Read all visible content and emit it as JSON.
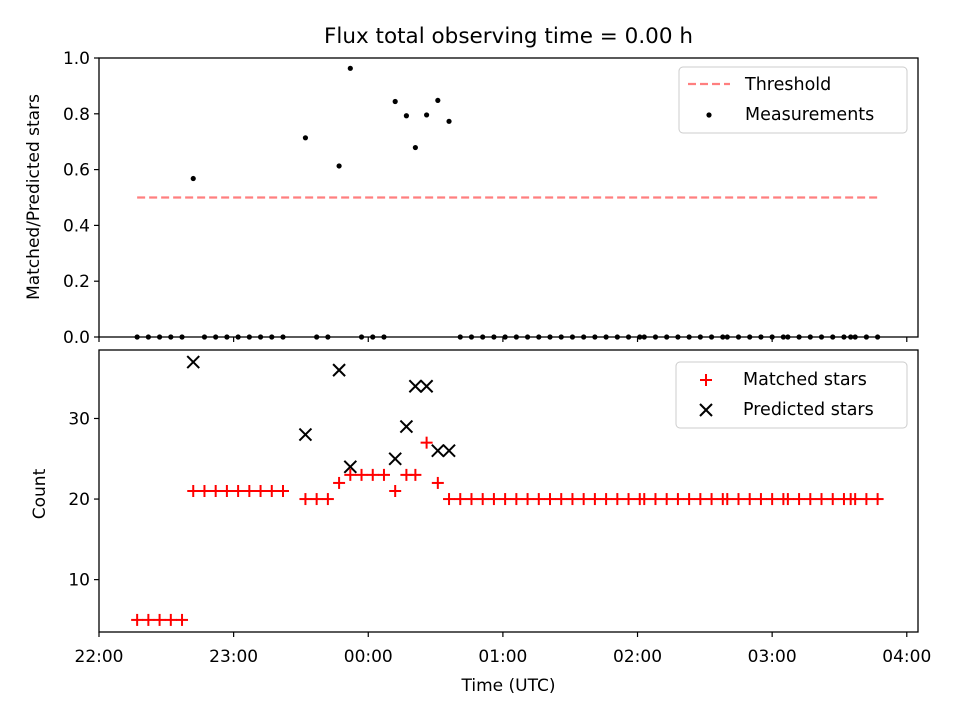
{
  "chart_data": [
    {
      "type": "scatter",
      "title": "Flux total observing time = 0.00 h",
      "xlabel": "",
      "ylabel": "Matched/Predicted stars",
      "ylim": [
        0,
        1.0
      ],
      "yticks": [
        "0.0",
        "0.2",
        "0.4",
        "0.6",
        "0.8",
        "1.0"
      ],
      "legend_position": "upper right",
      "threshold": {
        "name": "Threshold",
        "value": 0.5,
        "x_start": "22:17",
        "x_end": "03:47",
        "color": "#ff7f7f"
      },
      "series": [
        {
          "name": "Measurements",
          "color": "#000000",
          "marker": "dot",
          "points": [
            [
              "22:17",
              0
            ],
            [
              "22:22",
              0
            ],
            [
              "22:27",
              0
            ],
            [
              "22:32",
              0
            ],
            [
              "22:37",
              0
            ],
            [
              "22:42",
              0.568
            ],
            [
              "22:47",
              0
            ],
            [
              "22:52",
              0
            ],
            [
              "22:57",
              0
            ],
            [
              "23:02",
              0
            ],
            [
              "23:07",
              0
            ],
            [
              "23:12",
              0
            ],
            [
              "23:17",
              0
            ],
            [
              "23:22",
              0
            ],
            [
              "23:32",
              0.714
            ],
            [
              "23:37",
              0
            ],
            [
              "23:42",
              0
            ],
            [
              "23:47",
              0.613
            ],
            [
              "23:52",
              0.963
            ],
            [
              "23:57",
              0
            ],
            [
              "00:02",
              0
            ],
            [
              "00:07",
              0
            ],
            [
              "00:12",
              0.844
            ],
            [
              "00:17",
              0.793
            ],
            [
              "00:21",
              0.679
            ],
            [
              "00:26",
              0.796
            ],
            [
              "00:31",
              0.848
            ],
            [
              "00:36",
              0.773
            ],
            [
              "00:41",
              0
            ],
            [
              "00:46",
              0
            ],
            [
              "00:51",
              0
            ],
            [
              "00:56",
              0
            ],
            [
              "01:01",
              0
            ],
            [
              "01:06",
              0
            ],
            [
              "01:11",
              0
            ],
            [
              "01:16",
              0
            ],
            [
              "01:21",
              0
            ],
            [
              "01:26",
              0
            ],
            [
              "01:31",
              0
            ],
            [
              "01:36",
              0
            ],
            [
              "01:41",
              0
            ],
            [
              "01:46",
              0
            ],
            [
              "01:51",
              0
            ],
            [
              "01:56",
              0
            ],
            [
              "02:01",
              0
            ],
            [
              "02:03",
              0
            ],
            [
              "02:08",
              0
            ],
            [
              "02:13",
              0
            ],
            [
              "02:18",
              0
            ],
            [
              "02:23",
              0
            ],
            [
              "02:28",
              0
            ],
            [
              "02:33",
              0
            ],
            [
              "02:38",
              0
            ],
            [
              "02:40",
              0
            ],
            [
              "02:45",
              0
            ],
            [
              "02:50",
              0
            ],
            [
              "02:55",
              0
            ],
            [
              "03:00",
              0
            ],
            [
              "03:05",
              0
            ],
            [
              "03:07",
              0
            ],
            [
              "03:12",
              0
            ],
            [
              "03:17",
              0
            ],
            [
              "03:22",
              0
            ],
            [
              "03:27",
              0
            ],
            [
              "03:32",
              0
            ],
            [
              "03:35",
              0
            ],
            [
              "03:37",
              0
            ],
            [
              "03:42",
              0
            ],
            [
              "03:47",
              0
            ]
          ]
        }
      ]
    },
    {
      "type": "scatter",
      "title": "",
      "xlabel": "Time (UTC)",
      "ylabel": "Count",
      "ylim": [
        3.5,
        38.5
      ],
      "yticks": [
        "10",
        "20",
        "30"
      ],
      "xticks": [
        "22:00",
        "23:00",
        "00:00",
        "01:00",
        "02:00",
        "03:00",
        "04:00"
      ],
      "legend_position": "upper right",
      "series": [
        {
          "name": "Matched stars",
          "color": "#ff0000",
          "marker": "plus",
          "points": [
            [
              "22:17",
              5
            ],
            [
              "22:22",
              5
            ],
            [
              "22:27",
              5
            ],
            [
              "22:32",
              5
            ],
            [
              "22:37",
              5
            ],
            [
              "22:42",
              21
            ],
            [
              "22:47",
              21
            ],
            [
              "22:52",
              21
            ],
            [
              "22:57",
              21
            ],
            [
              "23:02",
              21
            ],
            [
              "23:07",
              21
            ],
            [
              "23:12",
              21
            ],
            [
              "23:17",
              21
            ],
            [
              "23:22",
              21
            ],
            [
              "23:32",
              20
            ],
            [
              "23:37",
              20
            ],
            [
              "23:42",
              20
            ],
            [
              "23:47",
              22
            ],
            [
              "23:52",
              23
            ],
            [
              "23:57",
              23
            ],
            [
              "00:02",
              23
            ],
            [
              "00:07",
              23
            ],
            [
              "00:12",
              21
            ],
            [
              "00:17",
              23
            ],
            [
              "00:21",
              23
            ],
            [
              "00:26",
              27
            ],
            [
              "00:31",
              22
            ],
            [
              "00:36",
              20
            ],
            [
              "00:41",
              20
            ],
            [
              "00:46",
              20
            ],
            [
              "00:51",
              20
            ],
            [
              "00:56",
              20
            ],
            [
              "01:01",
              20
            ],
            [
              "01:06",
              20
            ],
            [
              "01:11",
              20
            ],
            [
              "01:16",
              20
            ],
            [
              "01:21",
              20
            ],
            [
              "01:26",
              20
            ],
            [
              "01:31",
              20
            ],
            [
              "01:36",
              20
            ],
            [
              "01:41",
              20
            ],
            [
              "01:46",
              20
            ],
            [
              "01:51",
              20
            ],
            [
              "01:56",
              20
            ],
            [
              "02:01",
              20
            ],
            [
              "02:03",
              20
            ],
            [
              "02:08",
              20
            ],
            [
              "02:13",
              20
            ],
            [
              "02:18",
              20
            ],
            [
              "02:23",
              20
            ],
            [
              "02:28",
              20
            ],
            [
              "02:33",
              20
            ],
            [
              "02:38",
              20
            ],
            [
              "02:40",
              20
            ],
            [
              "02:45",
              20
            ],
            [
              "02:50",
              20
            ],
            [
              "02:55",
              20
            ],
            [
              "03:00",
              20
            ],
            [
              "03:05",
              20
            ],
            [
              "03:07",
              20
            ],
            [
              "03:12",
              20
            ],
            [
              "03:17",
              20
            ],
            [
              "03:22",
              20
            ],
            [
              "03:27",
              20
            ],
            [
              "03:32",
              20
            ],
            [
              "03:35",
              20
            ],
            [
              "03:37",
              20
            ],
            [
              "03:42",
              20
            ],
            [
              "03:47",
              20
            ]
          ]
        },
        {
          "name": "Predicted stars",
          "color": "#000000",
          "marker": "x",
          "points": [
            [
              "22:42",
              37
            ],
            [
              "23:32",
              28
            ],
            [
              "23:47",
              36
            ],
            [
              "23:52",
              24
            ],
            [
              "00:12",
              25
            ],
            [
              "00:17",
              29
            ],
            [
              "00:21",
              34
            ],
            [
              "00:26",
              34
            ],
            [
              "00:31",
              26
            ],
            [
              "00:36",
              26
            ]
          ]
        }
      ]
    }
  ]
}
